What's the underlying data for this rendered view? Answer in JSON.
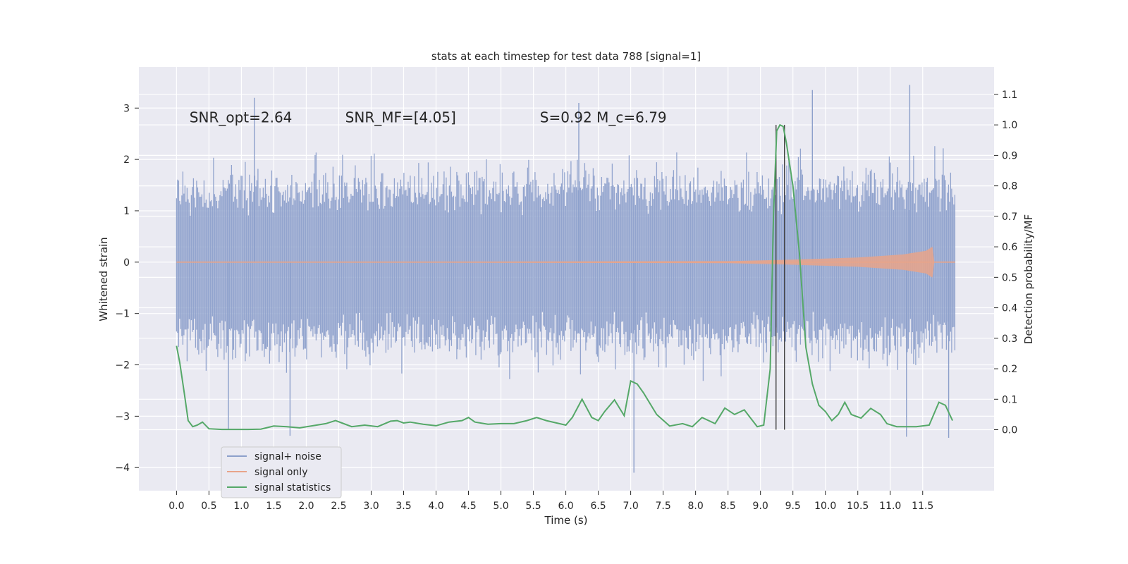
{
  "chart_data": {
    "type": "line",
    "title": "stats at each timestep for test data 788 [signal=1]",
    "xlabel": "Time (s)",
    "ylabel_left": "Whitened strain",
    "ylabel_right": "Detection probability/MF",
    "xlim": [
      -0.58,
      12.6
    ],
    "ylim_left": [
      -4.45,
      3.8
    ],
    "ylim_right": [
      -0.2,
      1.19
    ],
    "x_ticks": [
      0.0,
      0.5,
      1.0,
      1.5,
      2.0,
      2.5,
      3.0,
      3.5,
      4.0,
      4.5,
      5.0,
      5.5,
      6.0,
      6.5,
      7.0,
      7.5,
      8.0,
      8.5,
      9.0,
      9.5,
      10.0,
      10.5,
      11.0,
      11.5
    ],
    "x_tick_labels": [
      "0.0",
      "0.5",
      "1.0",
      "1.5",
      "2.0",
      "2.5",
      "3.0",
      "3.5",
      "4.0",
      "4.5",
      "5.0",
      "5.5",
      "6.0",
      "6.5",
      "7.0",
      "7.5",
      "8.0",
      "8.5",
      "9.0",
      "9.5",
      "10.0",
      "10.5",
      "11.0",
      "11.5"
    ],
    "y_left_ticks": [
      3,
      2,
      1,
      0,
      -1,
      -2,
      -3,
      -4
    ],
    "y_left_tick_labels": [
      "3",
      "2",
      "1",
      "0",
      "−1",
      "−2",
      "−3",
      "−4"
    ],
    "y_right_ticks": [
      1.1,
      1.0,
      0.9,
      0.8,
      0.7,
      0.6,
      0.5,
      0.4,
      0.3,
      0.2,
      0.1,
      0.0
    ],
    "y_right_tick_labels": [
      "1.1",
      "1.0",
      "0.9",
      "0.8",
      "0.7",
      "0.6",
      "0.5",
      "0.4",
      "0.3",
      "0.2",
      "0.1",
      "0.0"
    ],
    "grid": true,
    "legend_position": "lower-left",
    "annotations": [
      {
        "text": "SNR_opt=2.64",
        "x": 0.2,
        "y": 2.72
      },
      {
        "text": "SNR_MF=[4.05]",
        "x": 2.6,
        "y": 2.72
      },
      {
        "text": "S=0.92   M_c=6.79",
        "x": 5.6,
        "y": 2.72
      }
    ],
    "series": [
      {
        "name": "signal+ noise",
        "color": "#8da0cb",
        "axis": "left",
        "x_range": [
          0.0,
          12.0
        ],
        "typical_range": [
          -1.6,
          1.5
        ],
        "extremes": [
          [
            1.2,
            3.2
          ],
          [
            6.2,
            3.1
          ],
          [
            9.8,
            3.35
          ],
          [
            11.3,
            3.45
          ],
          [
            0.8,
            -3.25
          ],
          [
            1.75,
            -3.38
          ],
          [
            7.05,
            -4.1
          ],
          [
            11.25,
            -3.4
          ],
          [
            11.9,
            -3.42
          ]
        ]
      },
      {
        "name": "signal only",
        "color": "#e8a48a",
        "axis": "left",
        "x_range": [
          0.0,
          12.0
        ],
        "envelope": [
          [
            0.0,
            0.0
          ],
          [
            8.5,
            0.02
          ],
          [
            9.5,
            0.05
          ],
          [
            10.5,
            0.09
          ],
          [
            11.2,
            0.15
          ],
          [
            11.55,
            0.22
          ],
          [
            11.65,
            0.3
          ],
          [
            11.68,
            0.0
          ]
        ]
      },
      {
        "name": "signal statistics",
        "color": "#55a868",
        "axis": "right",
        "x": [
          0.0,
          0.05,
          0.12,
          0.18,
          0.25,
          0.32,
          0.4,
          0.5,
          0.7,
          0.9,
          1.1,
          1.3,
          1.5,
          1.7,
          1.9,
          2.1,
          2.3,
          2.45,
          2.55,
          2.7,
          2.9,
          3.1,
          3.3,
          3.4,
          3.5,
          3.6,
          3.8,
          4.0,
          4.2,
          4.4,
          4.5,
          4.6,
          4.8,
          5.0,
          5.2,
          5.4,
          5.55,
          5.7,
          5.9,
          6.0,
          6.1,
          6.25,
          6.4,
          6.5,
          6.6,
          6.75,
          6.9,
          7.0,
          7.1,
          7.2,
          7.4,
          7.6,
          7.8,
          7.95,
          8.1,
          8.3,
          8.45,
          8.6,
          8.75,
          8.95,
          9.05,
          9.15,
          9.2,
          9.25,
          9.3,
          9.35,
          9.4,
          9.5,
          9.6,
          9.7,
          9.8,
          9.9,
          10.0,
          10.1,
          10.2,
          10.3,
          10.4,
          10.55,
          10.7,
          10.85,
          10.95,
          11.1,
          11.25,
          11.4,
          11.6,
          11.75,
          11.85,
          11.96
        ],
        "y": [
          0.275,
          0.22,
          0.12,
          0.03,
          0.01,
          0.015,
          0.025,
          0.003,
          0.001,
          0.001,
          0.001,
          0.002,
          0.012,
          0.01,
          0.006,
          0.013,
          0.02,
          0.03,
          0.022,
          0.01,
          0.015,
          0.01,
          0.028,
          0.03,
          0.022,
          0.025,
          0.018,
          0.013,
          0.025,
          0.03,
          0.04,
          0.025,
          0.018,
          0.02,
          0.02,
          0.03,
          0.04,
          0.03,
          0.02,
          0.015,
          0.04,
          0.1,
          0.04,
          0.03,
          0.06,
          0.098,
          0.046,
          0.16,
          0.15,
          0.12,
          0.05,
          0.012,
          0.02,
          0.01,
          0.04,
          0.02,
          0.071,
          0.05,
          0.065,
          0.01,
          0.015,
          0.2,
          0.7,
          0.98,
          1.0,
          0.995,
          0.94,
          0.8,
          0.58,
          0.27,
          0.15,
          0.08,
          0.06,
          0.03,
          0.05,
          0.09,
          0.05,
          0.038,
          0.07,
          0.05,
          0.02,
          0.01,
          0.01,
          0.01,
          0.015,
          0.09,
          0.08,
          0.03
        ]
      }
    ],
    "vertical_markers": [
      {
        "x": 9.24,
        "color": "#333333",
        "axis": "right",
        "y_range": [
          0.0,
          1.0
        ]
      },
      {
        "x": 9.37,
        "color": "#333333",
        "axis": "right",
        "y_range": [
          0.0,
          1.0
        ]
      }
    ]
  }
}
